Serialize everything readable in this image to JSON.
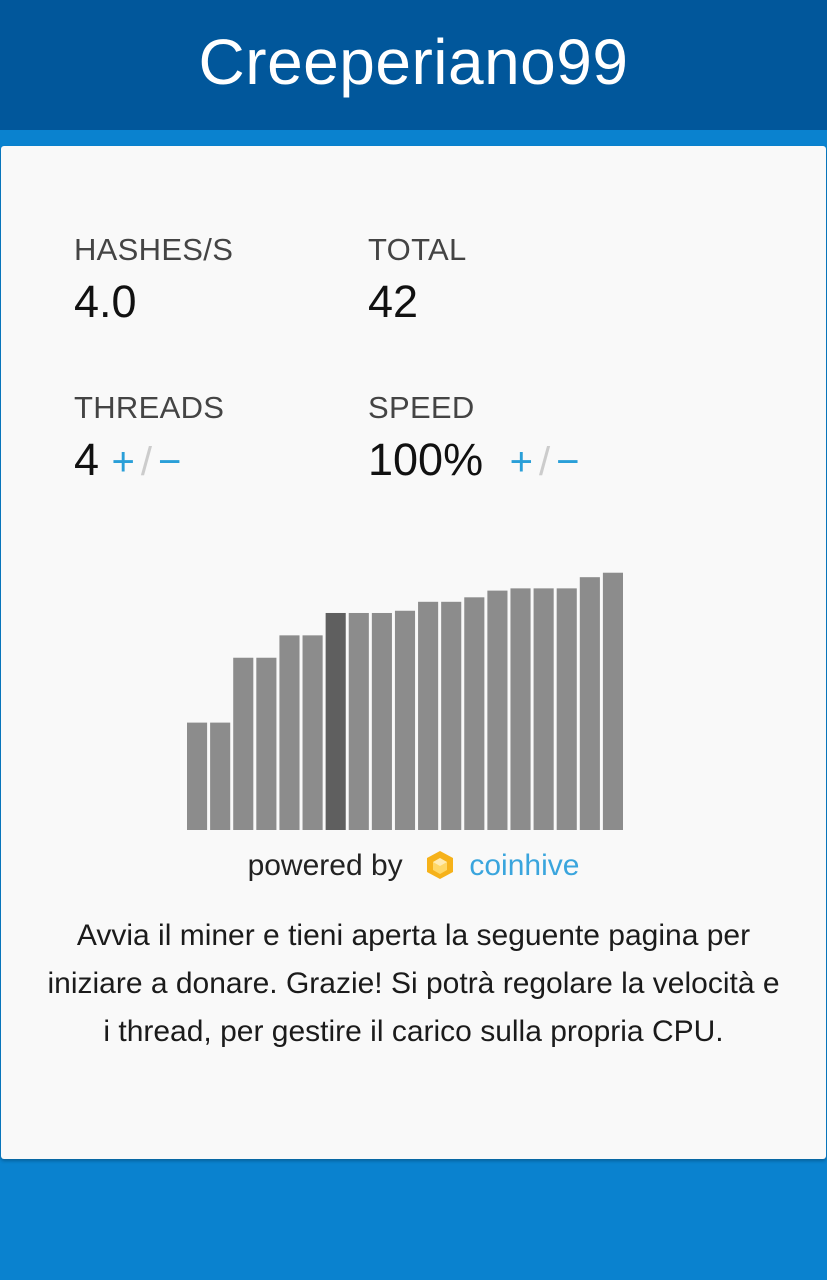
{
  "header": {
    "title": "Creeperiano99"
  },
  "stats": {
    "hashes": {
      "label": "HASHES/S",
      "value": "4.0"
    },
    "total": {
      "label": "TOTAL",
      "value": "42"
    },
    "threads": {
      "label": "THREADS",
      "value": "4",
      "plus": "+",
      "sep": "/",
      "minus": "−"
    },
    "speed": {
      "label": "SPEED",
      "value": "100%",
      "plus": "+",
      "sep": "/",
      "minus": "−"
    }
  },
  "chart_data": {
    "type": "bar",
    "values": [
      48,
      48,
      77,
      77,
      87,
      87,
      97,
      97,
      97,
      98,
      102,
      102,
      104,
      107,
      108,
      108,
      108,
      113,
      115
    ],
    "highlight_index": 6,
    "ylim": [
      0,
      118
    ],
    "colors": {
      "bar": "#8c8c8c",
      "highlight": "#5f5f5f"
    }
  },
  "footer": {
    "powered_by": "powered by",
    "brand": "coinhive",
    "brand_icon": "coinhive-hexagon-icon"
  },
  "description": "Avvia il miner e tieni aperta la seguente pagina per iniziare a donare. Grazie! Si potrà regolare la velocità e i thread, per gestire il carico sulla propria CPU."
}
